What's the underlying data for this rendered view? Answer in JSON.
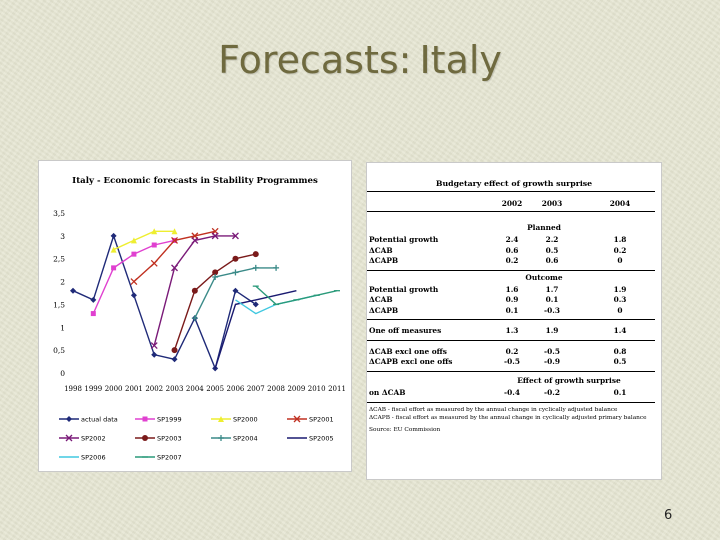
{
  "slide": {
    "title_part1": "Forecasts:",
    "title_part2": "Italy",
    "page_number": "6"
  },
  "chart_data": {
    "type": "line",
    "title": "Italy - Economic forecasts in Stability Programmes",
    "x": [
      "1998",
      "1999",
      "2000",
      "2001",
      "2002",
      "2003",
      "2004",
      "2005",
      "2006",
      "2007",
      "2008",
      "2009",
      "2010",
      "2011"
    ],
    "x_tick_labels": [
      "1998",
      "1999",
      "2000",
      "2001",
      "2002",
      "2003",
      "2004",
      "2005",
      "2006",
      "2007",
      "2008",
      "2009",
      "2010",
      "2011"
    ],
    "y_ticks": [
      "0",
      "0,5",
      "1",
      "1,5",
      "2",
      "2,5",
      "3",
      "3,5"
    ],
    "ylim": [
      0,
      3.5
    ],
    "legend_position": "bottom",
    "series": [
      {
        "name": "actual data",
        "color": "#1f2a78",
        "marker": "diamond",
        "values": [
          1.8,
          1.6,
          3.0,
          1.7,
          0.4,
          0.3,
          1.2,
          0.1,
          1.8,
          1.5,
          null,
          null,
          null,
          null
        ]
      },
      {
        "name": "SP1999",
        "color": "#e040d0",
        "marker": "square",
        "values": [
          null,
          1.3,
          2.3,
          2.6,
          2.8,
          2.9,
          null,
          null,
          null,
          null,
          null,
          null,
          null,
          null
        ]
      },
      {
        "name": "SP2000",
        "color": "#eeee30",
        "marker": "triangle",
        "values": [
          null,
          null,
          2.7,
          2.9,
          3.1,
          3.1,
          null,
          null,
          null,
          null,
          null,
          null,
          null,
          null
        ]
      },
      {
        "name": "SP2001",
        "color": "#c03020",
        "marker": "x",
        "values": [
          null,
          null,
          null,
          2.0,
          2.4,
          2.9,
          3.0,
          3.1,
          null,
          null,
          null,
          null,
          null,
          null
        ]
      },
      {
        "name": "SP2002",
        "color": "#7a1a78",
        "marker": "x",
        "values": [
          null,
          null,
          null,
          null,
          0.6,
          2.3,
          2.9,
          3.0,
          3.0,
          null,
          null,
          null,
          null,
          null
        ]
      },
      {
        "name": "SP2003",
        "color": "#7a1a1a",
        "marker": "circle",
        "values": [
          null,
          null,
          null,
          null,
          null,
          0.5,
          1.8,
          2.2,
          2.5,
          2.6,
          null,
          null,
          null,
          null
        ]
      },
      {
        "name": "SP2004",
        "color": "#3a8a88",
        "marker": "plus",
        "values": [
          null,
          null,
          null,
          null,
          null,
          null,
          1.2,
          2.1,
          2.2,
          2.3,
          2.3,
          null,
          null,
          null
        ]
      },
      {
        "name": "SP2005",
        "color": "#1a1a70",
        "marker": "none",
        "values": [
          null,
          null,
          null,
          null,
          null,
          null,
          null,
          0.1,
          1.5,
          1.6,
          1.7,
          1.8,
          null,
          null
        ]
      },
      {
        "name": "SP2006",
        "color": "#40c8e0",
        "marker": "none",
        "values": [
          null,
          null,
          null,
          null,
          null,
          null,
          null,
          null,
          1.6,
          1.3,
          1.5,
          1.6,
          1.7,
          null
        ]
      },
      {
        "name": "SP2007",
        "color": "#2a9a7a",
        "marker": "dash",
        "values": [
          null,
          null,
          null,
          null,
          null,
          null,
          null,
          null,
          null,
          1.9,
          1.5,
          1.6,
          1.7,
          1.8
        ]
      }
    ]
  },
  "table": {
    "title": "Budgetary effect of growth surprise",
    "years": [
      "2002",
      "2003",
      "2004"
    ],
    "sections": [
      {
        "header": "Planned",
        "rows": [
          {
            "label": "Potential growth",
            "vals": [
              "2.4",
              "2.2",
              "1.8"
            ]
          },
          {
            "label": "ΔCAB",
            "vals": [
              "0.6",
              "0.5",
              "0.2"
            ]
          },
          {
            "label": "ΔCAPB",
            "vals": [
              "0.2",
              "0.6",
              "0"
            ]
          }
        ]
      },
      {
        "header": "Outcome",
        "rows": [
          {
            "label": "Potential growth",
            "vals": [
              "1.6",
              "1.7",
              "1.9"
            ]
          },
          {
            "label": "ΔCAB",
            "vals": [
              "0.9",
              "0.1",
              "0.3"
            ]
          },
          {
            "label": "ΔCAPB",
            "vals": [
              "0.1",
              "-0.3",
              "0"
            ]
          }
        ]
      },
      {
        "header": "",
        "rows": [
          {
            "label": "One off measures",
            "vals": [
              "1.3",
              "1.9",
              "1.4"
            ]
          }
        ]
      },
      {
        "header": "",
        "rows": [
          {
            "label": "ΔCAB excl one offs",
            "vals": [
              "0.2",
              "-0.5",
              "0.8"
            ]
          },
          {
            "label": "ΔCAPB excl one offs",
            "vals": [
              "-0.5",
              "-0.9",
              "0.5"
            ]
          }
        ]
      },
      {
        "header": "Effect of growth surprise",
        "rows": [
          {
            "label": "on ΔCAB",
            "vals": [
              "-0.4",
              "-0.2",
              "0.1"
            ]
          }
        ]
      }
    ],
    "notes": [
      "ΔCAB - fiscal effort as measured by the annual change in cyclically adjusted balance",
      "ΔCAPB - fiscal effort as measured by the annual change in cyclically adjusted primary balance"
    ],
    "source": "Source: EU Commission"
  }
}
